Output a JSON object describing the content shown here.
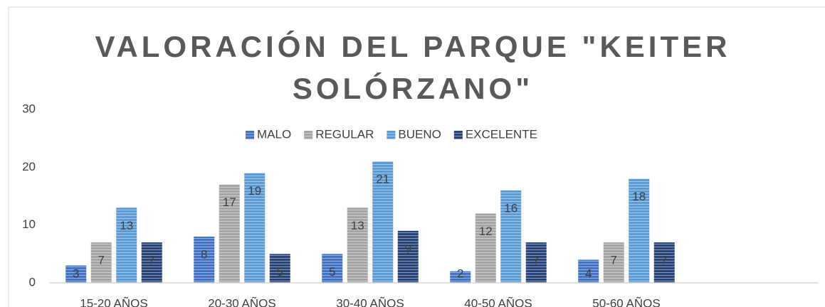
{
  "chart_data": {
    "type": "bar",
    "title": "VALORACIÓN DEL PARQUE \"KEITER SOLÓRZANO\"",
    "categories": [
      "15-20 AÑOS",
      "20-30 AÑOS",
      "30-40 AÑOS",
      "40-50 AÑOS",
      "50-60 AÑOS",
      null
    ],
    "series": [
      {
        "name": "MALO",
        "color": "#4472c4",
        "values": [
          3,
          8,
          5,
          2,
          4,
          null
        ]
      },
      {
        "name": "REGULAR",
        "color": "#a5a5a5",
        "values": [
          7,
          17,
          13,
          12,
          7,
          null
        ]
      },
      {
        "name": "BUENO",
        "color": "#5b9bd5",
        "values": [
          13,
          19,
          21,
          16,
          18,
          null
        ]
      },
      {
        "name": "EXCELENTE",
        "color": "#264478",
        "values": [
          7,
          5,
          9,
          7,
          7,
          null
        ]
      }
    ],
    "ylim": [
      0,
      30
    ],
    "yticks": [
      0,
      10,
      20,
      30
    ],
    "grid": false,
    "legend": "top"
  }
}
